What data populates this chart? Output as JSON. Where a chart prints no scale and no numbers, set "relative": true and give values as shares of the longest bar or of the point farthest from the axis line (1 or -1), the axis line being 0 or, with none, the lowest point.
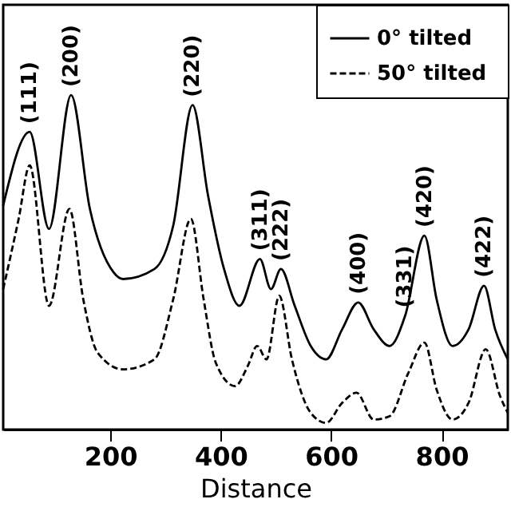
{
  "chart_data": {
    "type": "line",
    "relative": true,
    "xlabel": "Distance",
    "x": [
      6,
      54,
      89,
      129,
      163,
      206,
      223,
      280,
      314,
      349,
      377,
      406,
      434,
      471,
      491,
      509,
      534,
      563,
      591,
      620,
      649,
      677,
      706,
      734,
      769,
      791,
      820,
      849,
      877,
      897,
      920
    ],
    "xlim": [
      6,
      920
    ],
    "xticks": [
      200,
      400,
      600,
      800
    ],
    "series": [
      {
        "name": "0°  tilted",
        "color": "#000000",
        "line_style": "solid",
        "values": [
          0.67,
          0.89,
          0.6,
          1.0,
          0.66,
          0.47,
          0.45,
          0.48,
          0.61,
          0.97,
          0.7,
          0.48,
          0.37,
          0.51,
          0.42,
          0.48,
          0.37,
          0.25,
          0.21,
          0.3,
          0.38,
          0.3,
          0.25,
          0.34,
          0.58,
          0.39,
          0.25,
          0.3,
          0.43,
          0.3,
          0.21
        ]
      },
      {
        "name": "50°  tilted",
        "color": "#000000",
        "line_style": "dashed",
        "x": [
          6,
          34,
          54,
          89,
          126,
          151,
          177,
          223,
          280,
          314,
          346,
          369,
          391,
          426,
          449,
          466,
          483,
          506,
          529,
          563,
          591,
          620,
          646,
          677,
          706,
          740,
          769,
          791,
          820,
          849,
          880,
          906,
          920
        ],
        "values": [
          0.42,
          0.63,
          0.79,
          0.37,
          0.66,
          0.39,
          0.23,
          0.18,
          0.21,
          0.39,
          0.63,
          0.39,
          0.2,
          0.13,
          0.19,
          0.25,
          0.21,
          0.4,
          0.21,
          0.05,
          0.02,
          0.08,
          0.11,
          0.03,
          0.04,
          0.17,
          0.26,
          0.12,
          0.03,
          0.08,
          0.24,
          0.1,
          0.05
        ]
      }
    ],
    "annotations": [
      {
        "text": "(111)",
        "x": 54,
        "y": 0.89
      },
      {
        "text": "(200)",
        "x": 129,
        "y": 1.0
      },
      {
        "text": "(220)",
        "x": 349,
        "y": 0.97
      },
      {
        "text": "(311)",
        "x": 471,
        "y": 0.51
      },
      {
        "text": "(222)",
        "x": 509,
        "y": 0.48
      },
      {
        "text": "(400)",
        "x": 649,
        "y": 0.38
      },
      {
        "text": "(331)",
        "x": 734,
        "y": 0.34
      },
      {
        "text": "(420)",
        "x": 769,
        "y": 0.58
      },
      {
        "text": "(422)",
        "x": 877,
        "y": 0.43
      }
    ],
    "legend": "top right",
    "grid": false
  }
}
